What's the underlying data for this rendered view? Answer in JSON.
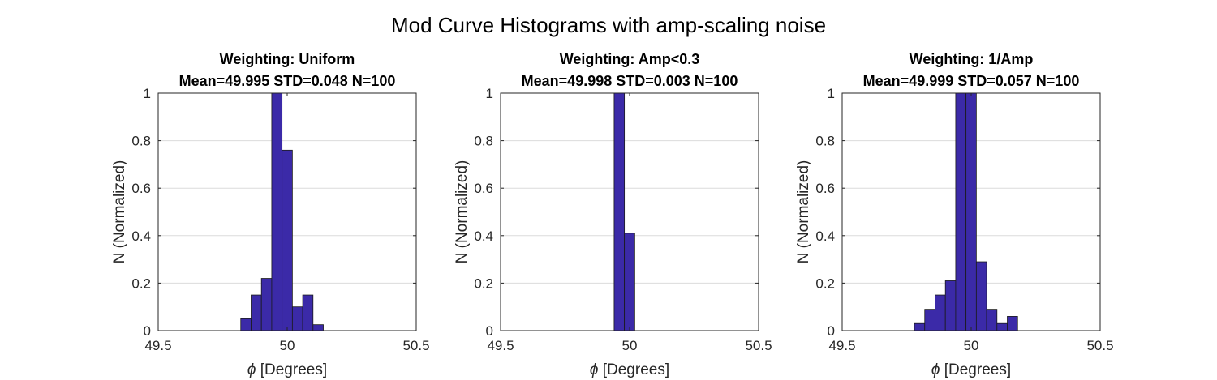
{
  "figure": {
    "title": "Mod Curve Histograms with amp-scaling noise"
  },
  "chart_data": [
    {
      "type": "bar",
      "title": "Weighting: Uniform",
      "subtitle": "Mean=49.995 STD=0.048 N=100",
      "xlabel_symbol": "ϕ",
      "xlabel": "[Degrees]",
      "ylabel": "N (Normalized)",
      "xlim": [
        49.5,
        50.5
      ],
      "ylim": [
        0,
        1
      ],
      "xticks": [
        "49.5",
        "50",
        "50.5"
      ],
      "yticks": [
        "0",
        "0.2",
        "0.4",
        "0.6",
        "0.8",
        "1"
      ],
      "grid": true,
      "bin_width": 0.04,
      "bin_centers": [
        49.6,
        49.64,
        49.68,
        49.72,
        49.76,
        49.8,
        49.84,
        49.88,
        49.92,
        49.96,
        50.0,
        50.04,
        50.08,
        50.12,
        50.16,
        50.2,
        50.24,
        50.28,
        50.32,
        50.36,
        50.4
      ],
      "values": [
        0,
        0,
        0,
        0,
        0,
        0,
        0.05,
        0.15,
        0.22,
        1.0,
        0.76,
        0.1,
        0.15,
        0.025,
        0,
        0,
        0,
        0,
        0,
        0,
        0
      ],
      "bar_color": "#3b2aa8"
    },
    {
      "type": "bar",
      "title": "Weighting: Amp<0.3",
      "subtitle": "Mean=49.998 STD=0.003 N=100",
      "xlabel_symbol": "ϕ",
      "xlabel": "[Degrees]",
      "ylabel": "N (Normalized)",
      "xlim": [
        49.5,
        50.5
      ],
      "ylim": [
        0,
        1
      ],
      "xticks": [
        "49.5",
        "50",
        "50.5"
      ],
      "yticks": [
        "0",
        "0.2",
        "0.4",
        "0.6",
        "0.8",
        "1"
      ],
      "grid": true,
      "bin_width": 0.04,
      "bin_centers": [
        49.6,
        49.64,
        49.68,
        49.72,
        49.76,
        49.8,
        49.84,
        49.88,
        49.92,
        49.96,
        50.0,
        50.04,
        50.08,
        50.12,
        50.16,
        50.2,
        50.24,
        50.28,
        50.32,
        50.36,
        50.4
      ],
      "values": [
        0,
        0,
        0,
        0,
        0,
        0,
        0,
        0,
        0,
        1.0,
        0.41,
        0,
        0,
        0,
        0,
        0,
        0,
        0,
        0,
        0,
        0
      ],
      "bar_color": "#3b2aa8"
    },
    {
      "type": "bar",
      "title": "Weighting: 1/Amp",
      "subtitle": "Mean=49.999 STD=0.057 N=100",
      "xlabel_symbol": "ϕ",
      "xlabel": "[Degrees]",
      "ylabel": "N (Normalized)",
      "xlim": [
        49.5,
        50.5
      ],
      "ylim": [
        0,
        1
      ],
      "xticks": [
        "49.5",
        "50",
        "50.5"
      ],
      "yticks": [
        "0",
        "0.2",
        "0.4",
        "0.6",
        "0.8",
        "1"
      ],
      "grid": true,
      "bin_width": 0.04,
      "bin_centers": [
        49.6,
        49.64,
        49.68,
        49.72,
        49.76,
        49.8,
        49.84,
        49.88,
        49.92,
        49.96,
        50.0,
        50.04,
        50.08,
        50.12,
        50.16,
        50.2,
        50.24,
        50.28,
        50.32,
        50.36,
        50.4
      ],
      "values": [
        0,
        0,
        0,
        0,
        0,
        0.03,
        0.09,
        0.15,
        0.21,
        1.0,
        1.0,
        0.29,
        0.09,
        0.03,
        0.06,
        0,
        0,
        0,
        0,
        0,
        0
      ],
      "bar_color": "#3b2aa8"
    }
  ]
}
